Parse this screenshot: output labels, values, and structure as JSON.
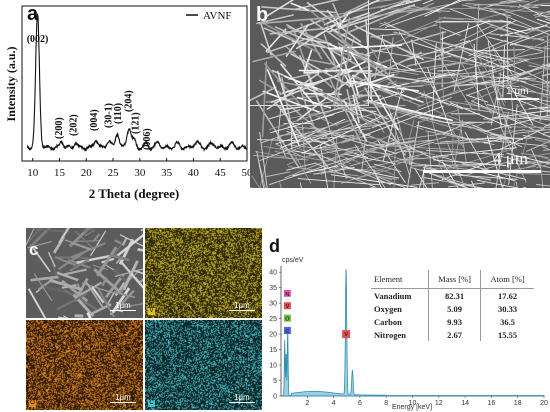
{
  "panels": {
    "a": "a",
    "b": "b",
    "c": "c",
    "d": "d"
  },
  "xrd": {
    "legend": "AVNF",
    "xlabel": "2 Theta (degree)",
    "ylabel": "Intensity (a.u.)",
    "x_ticks": [
      "10",
      "15",
      "20",
      "25",
      "30",
      "35",
      "40",
      "45",
      "50"
    ],
    "peaks": [
      "(002)",
      "(200)",
      "(202)",
      "(004)",
      "(30-1)",
      "(110)",
      "(204)",
      "(121)",
      "(006)"
    ]
  },
  "sem": {
    "inset_scale": "1 μm",
    "main_scale": "4 μm"
  },
  "mapping": {
    "scale_main": "1μm",
    "scale_v": "1μm",
    "scale_o": "1μm",
    "scale_c": "1μm",
    "tag_v": "V",
    "tag_o": "O",
    "tag_c": "C",
    "colors": {
      "sem": "#5c5c5c",
      "v": "#c9b020",
      "o": "#d27a14",
      "c": "#3aa4ab"
    }
  },
  "eds": {
    "unit_label": "cps/eV",
    "xlabel": "Energy [keV]",
    "y_ticks": [
      "0",
      "5",
      "10",
      "15",
      "20",
      "25",
      "30",
      "35",
      "40"
    ],
    "x_ticks": [
      "2",
      "4",
      "6",
      "8",
      "10",
      "12",
      "14",
      "16",
      "18",
      "20"
    ],
    "markers_left": [
      "N",
      "V",
      "O",
      "C"
    ],
    "marker_v": "V",
    "spectrum_color": "#4aa8c8",
    "table": {
      "headers": [
        "Element",
        "Mass [%]",
        "Atom [%]"
      ],
      "rows": [
        [
          "Vanadium",
          "82.31",
          "17.62"
        ],
        [
          "Oxygen",
          "5.09",
          "30.33"
        ],
        [
          "Carbon",
          "9.93",
          "36.5"
        ],
        [
          "Nitrogen",
          "2.67",
          "15.55"
        ]
      ]
    }
  }
}
